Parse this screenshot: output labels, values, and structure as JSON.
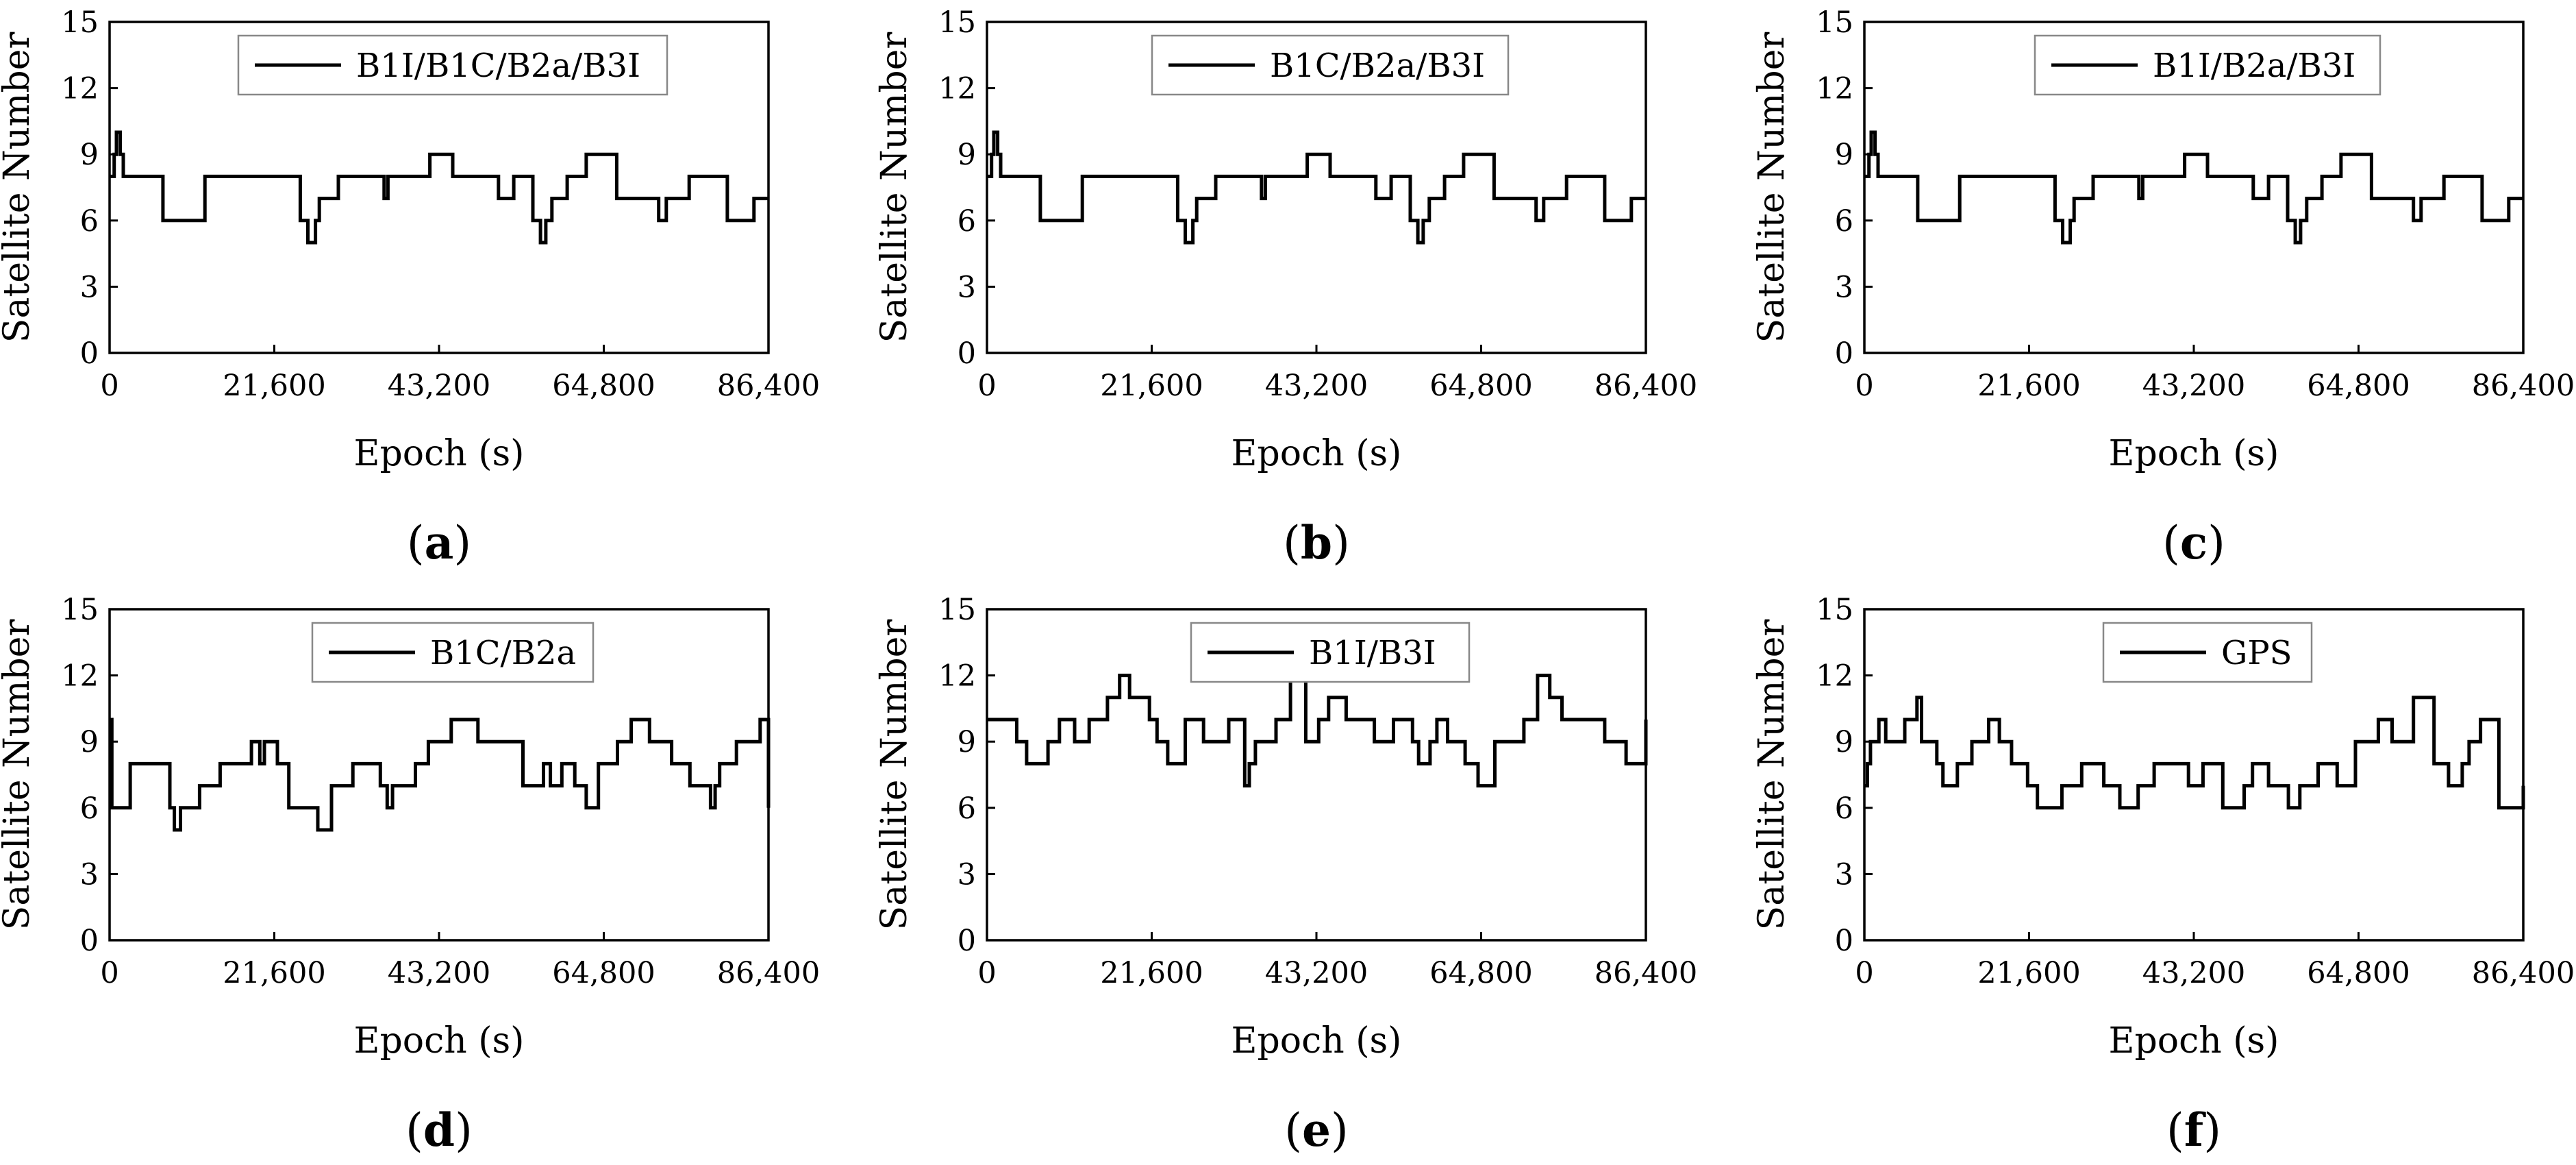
{
  "figure": {
    "panels": [
      "a",
      "b",
      "c",
      "d",
      "e",
      "f"
    ]
  },
  "chart_data": [
    {
      "type": "line",
      "panel_label": "a",
      "legend": "B1I/B1C/B2a/B3I",
      "xlabel": "Epoch (s)",
      "ylabel": "Satellite Number",
      "xlim": [
        0,
        86400
      ],
      "ylim": [
        0,
        15
      ],
      "xticks": [
        "0",
        "21,600",
        "43,200",
        "64,800",
        "86,400"
      ],
      "yticks": [
        "0",
        "3",
        "6",
        "9",
        "12",
        "15"
      ],
      "series": [
        {
          "name": "B1I/B1C/B2a/B3I",
          "x": [
            0,
            600,
            900,
            1400,
            1800,
            4800,
            7000,
            11000,
            12500,
            13500,
            25000,
            26000,
            27000,
            27500,
            28500,
            30000,
            32000,
            36000,
            36500,
            38000,
            42000,
            44000,
            45000,
            50000,
            51000,
            52000,
            53000,
            54500,
            55500,
            56500,
            57200,
            58000,
            59000,
            60000,
            62000,
            62500,
            64500,
            66500,
            70000,
            72000,
            73000,
            75000,
            76000,
            78500,
            81000,
            82500,
            84500,
            86400
          ],
          "values": [
            8,
            9,
            10,
            9,
            8,
            8,
            6,
            6,
            8,
            8,
            6,
            5,
            6,
            7,
            7,
            8,
            8,
            7,
            8,
            8,
            9,
            9,
            8,
            8,
            7,
            7,
            8,
            8,
            6,
            5,
            6,
            7,
            7,
            8,
            8,
            9,
            9,
            7,
            7,
            6,
            7,
            7,
            8,
            8,
            6,
            6,
            7,
            7
          ]
        }
      ]
    },
    {
      "type": "line",
      "panel_label": "b",
      "legend": "B1C/B2a/B3I",
      "xlabel": "Epoch (s)",
      "ylabel": "Satellite Number",
      "xlim": [
        0,
        86400
      ],
      "ylim": [
        0,
        15
      ],
      "xticks": [
        "0",
        "21,600",
        "43,200",
        "64,800",
        "86,400"
      ],
      "yticks": [
        "0",
        "3",
        "6",
        "9",
        "12",
        "15"
      ],
      "series": [
        {
          "name": "B1C/B2a/B3I",
          "x": [
            0,
            600,
            900,
            1400,
            1800,
            4800,
            7000,
            11000,
            12500,
            13500,
            25000,
            26000,
            27000,
            27500,
            28500,
            30000,
            32000,
            36000,
            36500,
            38000,
            42000,
            44000,
            45000,
            50000,
            51000,
            52000,
            53000,
            54500,
            55500,
            56500,
            57200,
            58000,
            59000,
            60000,
            62000,
            62500,
            64500,
            66500,
            70000,
            72000,
            73000,
            75000,
            76000,
            78500,
            81000,
            82500,
            84500,
            86400
          ],
          "values": [
            8,
            9,
            10,
            9,
            8,
            8,
            6,
            6,
            8,
            8,
            6,
            5,
            6,
            7,
            7,
            8,
            8,
            7,
            8,
            8,
            9,
            9,
            8,
            8,
            7,
            7,
            8,
            8,
            6,
            5,
            6,
            7,
            7,
            8,
            8,
            9,
            9,
            7,
            7,
            6,
            7,
            7,
            8,
            8,
            6,
            6,
            7,
            7
          ]
        }
      ]
    },
    {
      "type": "line",
      "panel_label": "c",
      "legend": "B1I/B2a/B3I",
      "xlabel": "Epoch (s)",
      "ylabel": "Satellite Number",
      "xlim": [
        0,
        86400
      ],
      "ylim": [
        0,
        15
      ],
      "xticks": [
        "0",
        "21,600",
        "43,200",
        "64,800",
        "86,400"
      ],
      "yticks": [
        "0",
        "3",
        "6",
        "9",
        "12",
        "15"
      ],
      "series": [
        {
          "name": "B1I/B2a/B3I",
          "x": [
            0,
            600,
            900,
            1400,
            1800,
            4800,
            7000,
            11000,
            12500,
            13500,
            25000,
            26000,
            27000,
            27500,
            28500,
            30000,
            32000,
            36000,
            36500,
            38000,
            42000,
            44000,
            45000,
            50000,
            51000,
            52000,
            53000,
            54500,
            55500,
            56500,
            57200,
            58000,
            59000,
            60000,
            62000,
            62500,
            64500,
            66500,
            70000,
            72000,
            73000,
            75000,
            76000,
            78500,
            81000,
            82500,
            84500,
            86400
          ],
          "values": [
            8,
            9,
            10,
            9,
            8,
            8,
            6,
            6,
            8,
            8,
            6,
            5,
            6,
            7,
            7,
            8,
            8,
            7,
            8,
            8,
            9,
            9,
            8,
            8,
            7,
            7,
            8,
            8,
            6,
            5,
            6,
            7,
            7,
            8,
            8,
            9,
            9,
            7,
            7,
            6,
            7,
            7,
            8,
            8,
            6,
            6,
            7,
            7
          ]
        }
      ]
    },
    {
      "type": "line",
      "panel_label": "d",
      "legend": "B1C/B2a",
      "xlabel": "Epoch (s)",
      "ylabel": "Satellite Number",
      "xlim": [
        0,
        86400
      ],
      "ylim": [
        0,
        15
      ],
      "xticks": [
        "0",
        "21,600",
        "43,200",
        "64,800",
        "86,400"
      ],
      "yticks": [
        "0",
        "3",
        "6",
        "9",
        "12",
        "15"
      ],
      "series": [
        {
          "name": "B1C/B2a",
          "x": [
            0,
            300,
            500,
            2700,
            7300,
            7900,
            8500,
            9300,
            11800,
            14500,
            16600,
            18600,
            19700,
            20300,
            22000,
            23500,
            27300,
            29100,
            31900,
            35500,
            36400,
            37100,
            38500,
            40100,
            41800,
            44800,
            48300,
            54200,
            56900,
            57800,
            58400,
            59300,
            61000,
            62500,
            63200,
            64100,
            66600,
            68400,
            70800,
            73700,
            74600,
            76100,
            78800,
            79400,
            80000,
            82200,
            85300,
            86400
          ],
          "values": [
            10,
            6,
            6,
            8,
            8,
            6,
            5,
            6,
            7,
            8,
            8,
            9,
            8,
            9,
            8,
            6,
            5,
            7,
            8,
            7,
            6,
            7,
            7,
            8,
            9,
            10,
            9,
            7,
            8,
            7,
            7,
            8,
            7,
            6,
            6,
            8,
            9,
            10,
            9,
            8,
            8,
            7,
            6,
            7,
            8,
            9,
            10,
            6
          ]
        }
      ]
    },
    {
      "type": "line",
      "panel_label": "e",
      "legend": "B1I/B3I",
      "xlabel": "Epoch (s)",
      "ylabel": "Satellite Number",
      "xlim": [
        0,
        86400
      ],
      "ylim": [
        0,
        15
      ],
      "xticks": [
        "0",
        "21,600",
        "43,200",
        "64,800",
        "86,400"
      ],
      "yticks": [
        "0",
        "3",
        "6",
        "9",
        "12",
        "15"
      ],
      "series": [
        {
          "name": "B1I/B3I",
          "x": [
            0,
            3000,
            3900,
            5200,
            8000,
            9500,
            11500,
            13400,
            15800,
            17400,
            18700,
            21300,
            22300,
            23700,
            24800,
            26000,
            27400,
            28400,
            31700,
            33800,
            34400,
            35200,
            37900,
            39800,
            41800,
            43500,
            44800,
            47100,
            49000,
            50800,
            53300,
            55800,
            56600,
            58100,
            59000,
            60400,
            62700,
            64400,
            66600,
            67900,
            70400,
            72200,
            73800,
            75400,
            79400,
            81000,
            83800,
            86400
          ],
          "values": [
            10,
            10,
            9,
            8,
            9,
            10,
            9,
            10,
            11,
            12,
            11,
            10,
            9,
            8,
            8,
            10,
            10,
            9,
            10,
            7,
            8,
            9,
            10,
            12,
            9,
            10,
            11,
            10,
            10,
            9,
            10,
            9,
            8,
            9,
            10,
            9,
            8,
            7,
            9,
            9,
            10,
            12,
            11,
            10,
            10,
            9,
            8,
            10
          ]
        }
      ]
    },
    {
      "type": "line",
      "panel_label": "f",
      "legend": "GPS",
      "xlabel": "Epoch (s)",
      "ylabel": "Satellite Number",
      "xlim": [
        0,
        86400
      ],
      "ylim": [
        0,
        15
      ],
      "xticks": [
        "0",
        "21,600",
        "43,200",
        "64,800",
        "86,400"
      ],
      "yticks": [
        "0",
        "3",
        "6",
        "9",
        "12",
        "15"
      ],
      "series": [
        {
          "name": "GPS",
          "x": [
            0,
            400,
            800,
            1900,
            2800,
            3600,
            5300,
            6900,
            7500,
            9500,
            10300,
            12200,
            14100,
            16300,
            17700,
            19300,
            21400,
            22700,
            23600,
            25900,
            28500,
            31400,
            33500,
            35900,
            38000,
            40600,
            42500,
            44400,
            47000,
            49800,
            50900,
            53000,
            55600,
            57100,
            59500,
            62000,
            64400,
            67400,
            69200,
            70700,
            72000,
            74700,
            76600,
            78400,
            79300,
            80800,
            83200,
            86400
          ],
          "values": [
            7,
            8,
            9,
            10,
            9,
            9,
            10,
            11,
            9,
            8,
            7,
            8,
            9,
            10,
            9,
            8,
            7,
            6,
            6,
            7,
            8,
            7,
            6,
            7,
            8,
            8,
            7,
            8,
            6,
            7,
            8,
            7,
            6,
            7,
            8,
            7,
            9,
            10,
            9,
            9,
            11,
            8,
            7,
            8,
            9,
            10,
            6,
            7
          ]
        }
      ]
    }
  ]
}
